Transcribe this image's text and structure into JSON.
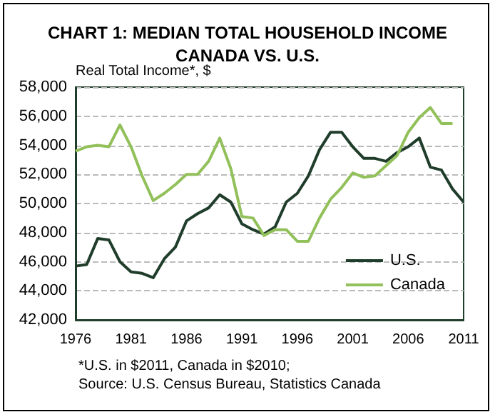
{
  "chart_data": {
    "type": "line",
    "title": "CHART 1: MEDIAN TOTAL HOUSEHOLD INCOME\nCANADA VS. U.S.",
    "ylabel": "Real Total Income*, $",
    "annotations": [
      "*U.S. in $2011, Canada in $2010;\nSource: U.S. Census Bureau, Statistics Canada"
    ],
    "x": [
      1976,
      1977,
      1978,
      1979,
      1980,
      1981,
      1982,
      1983,
      1984,
      1985,
      1986,
      1987,
      1988,
      1989,
      1990,
      1991,
      1992,
      1993,
      1994,
      1995,
      1996,
      1997,
      1998,
      1999,
      2000,
      2001,
      2002,
      2003,
      2004,
      2005,
      2006,
      2007,
      2008,
      2009,
      2010,
      2011
    ],
    "series": [
      {
        "name": "U.S.",
        "color": "#1f3d2a",
        "values": [
          45700,
          45800,
          47600,
          47500,
          46000,
          45300,
          45200,
          44900,
          46200,
          47000,
          48800,
          49300,
          49700,
          50600,
          50100,
          48600,
          48200,
          47900,
          48400,
          50100,
          50700,
          51900,
          53700,
          54900,
          54900,
          53900,
          53100,
          53100,
          52900,
          53500,
          53900,
          54500,
          52500,
          52300,
          51000,
          50100
        ]
      },
      {
        "name": "Canada",
        "color": "#92c05a",
        "values": [
          53600,
          53900,
          54000,
          53900,
          55400,
          53900,
          51900,
          50200,
          50700,
          51300,
          52000,
          52000,
          52900,
          54500,
          52400,
          49100,
          49000,
          47800,
          48200,
          48200,
          47400,
          47400,
          49000,
          50300,
          51100,
          52100,
          51800,
          51900,
          52600,
          53300,
          54900,
          55900,
          56600,
          55500,
          55500,
          null
        ]
      }
    ],
    "xlim": [
      1976,
      2011
    ],
    "xticks": [
      1976,
      1981,
      1986,
      1991,
      1996,
      2001,
      2006,
      2011
    ],
    "ylim": [
      42000,
      58000
    ],
    "yticks": [
      {
        "value": 42000,
        "label": "42,000"
      },
      {
        "value": 44000,
        "label": "44,000"
      },
      {
        "value": 46000,
        "label": "46,000"
      },
      {
        "value": 48000,
        "label": "48,000"
      },
      {
        "value": 50000,
        "label": "50,000"
      },
      {
        "value": 52000,
        "label": "52,000"
      },
      {
        "value": 54000,
        "label": "54,000"
      },
      {
        "value": 56000,
        "label": "56,000"
      },
      {
        "value": 58000,
        "label": "58,000"
      }
    ],
    "grid": "y",
    "legend": "bottom right",
    "marker": "none",
    "line_style": "solid"
  }
}
